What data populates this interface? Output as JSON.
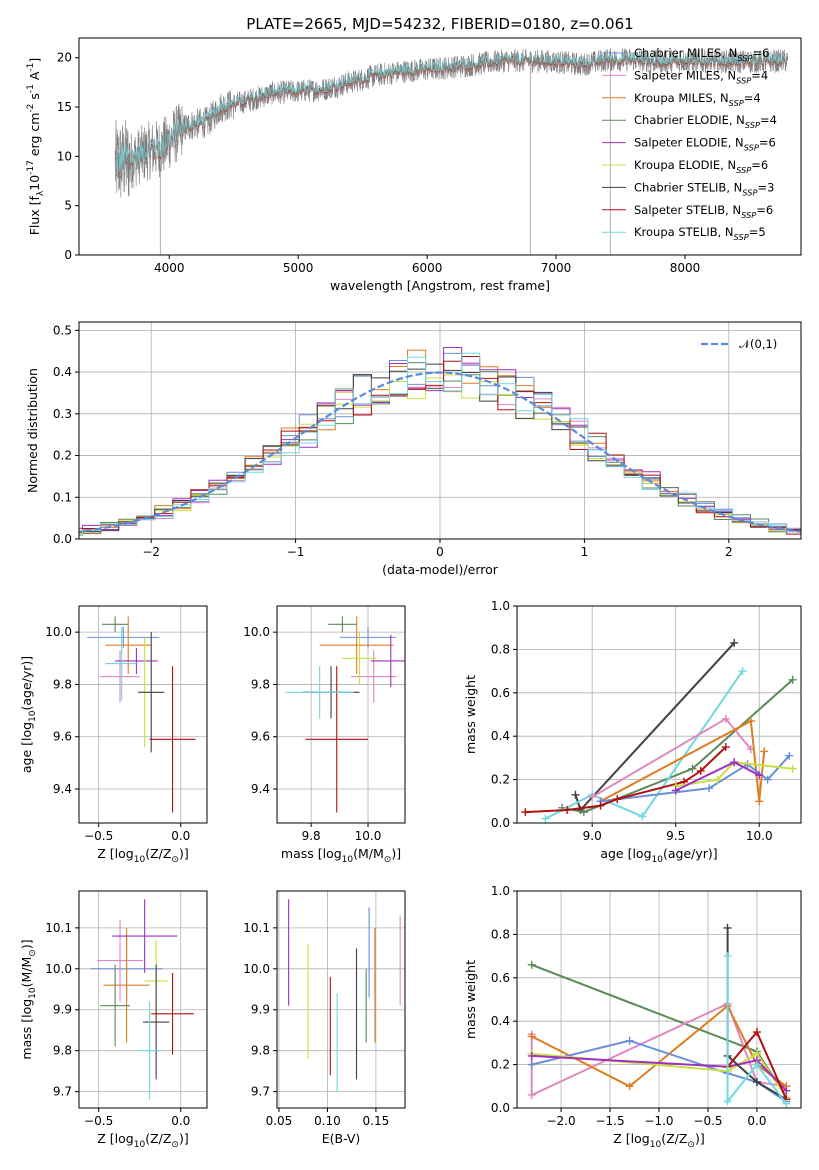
{
  "figure": {
    "title": "PLATE=2665, MJD=54232, FIBERID=0180, z=0.061"
  },
  "palette": {
    "Chabrier MILES": "#6a8ed8",
    "Salpeter MILES": "#e088c0",
    "Kroupa MILES": "#e07c20",
    "Chabrier ELODIE": "#5a8a5a",
    "Salpeter ELODIE": "#a030c0",
    "Kroupa ELODIE": "#c8e040",
    "Chabrier STELIB": "#404040",
    "Salpeter STELIB": "#b01010",
    "Kroupa STELIB": "#70d8e0",
    "Gauss": "#5a8ad8"
  },
  "chart_data": [
    {
      "id": "spectrum",
      "type": "line",
      "xlabel": "wavelength [Angstrom, rest frame]",
      "ylabel": "Flux [f$_\\lambda$10$^{-17}$ erg cm$^{-2}$ s$^{-1}$ A$^{-1}$]",
      "xlim": [
        3300,
        8900
      ],
      "ylim": [
        0,
        22
      ],
      "xticks": [
        4000,
        5000,
        6000,
        7000,
        8000
      ],
      "yticks": [
        0,
        5,
        10,
        15,
        20
      ],
      "grid": false,
      "legend_position": "upper right",
      "continuum": [
        [
          3580,
          9.2
        ],
        [
          3700,
          9.6
        ],
        [
          3850,
          10.6
        ],
        [
          3950,
          10.9
        ],
        [
          4050,
          12.2
        ],
        [
          4150,
          13.1
        ],
        [
          4300,
          13.5
        ],
        [
          4400,
          15.0
        ],
        [
          4600,
          15.6
        ],
        [
          4800,
          16.4
        ],
        [
          5000,
          16.6
        ],
        [
          5200,
          16.8
        ],
        [
          5400,
          17.5
        ],
        [
          5600,
          18.2
        ],
        [
          5800,
          18.6
        ],
        [
          6000,
          18.8
        ],
        [
          6300,
          19.2
        ],
        [
          6600,
          19.7
        ],
        [
          6800,
          19.7
        ],
        [
          7000,
          19.6
        ],
        [
          7200,
          19.3
        ],
        [
          7400,
          19.8
        ],
        [
          7600,
          19.8
        ],
        [
          7800,
          19.6
        ],
        [
          8000,
          19.7
        ],
        [
          8300,
          19.6
        ],
        [
          8600,
          19.6
        ],
        [
          8800,
          19.7
        ]
      ],
      "spikes": [
        [
          3930,
          0
        ],
        [
          6800,
          0
        ],
        [
          7420,
          0
        ]
      ],
      "legend_entries": [
        {
          "label": "Chabrier MILES, N$_{SSP}$=6",
          "series": "Chabrier MILES"
        },
        {
          "label": "Salpeter MILES, N$_{SSP}$=4",
          "series": "Salpeter MILES"
        },
        {
          "label": "Kroupa MILES, N$_{SSP}$=4",
          "series": "Kroupa MILES"
        },
        {
          "label": "Chabrier ELODIE, N$_{SSP}$=4",
          "series": "Chabrier ELODIE"
        },
        {
          "label": "Salpeter ELODIE, N$_{SSP}$=6",
          "series": "Salpeter ELODIE"
        },
        {
          "label": "Kroupa ELODIE, N$_{SSP}$=6",
          "series": "Kroupa ELODIE"
        },
        {
          "label": "Chabrier STELIB, N$_{SSP}$=3",
          "series": "Chabrier STELIB"
        },
        {
          "label": "Salpeter STELIB, N$_{SSP}$=6",
          "series": "Salpeter STELIB"
        },
        {
          "label": "Kroupa STELIB, N$_{SSP}$=5",
          "series": "Kroupa STELIB"
        }
      ]
    },
    {
      "id": "residuals",
      "type": "line",
      "xlabel": "(data-model)/error",
      "ylabel": "Normed distribution",
      "xlim": [
        -2.5,
        2.5
      ],
      "ylim": [
        0,
        0.52
      ],
      "xticks": [
        -2,
        -1,
        0,
        1,
        2
      ],
      "yticks": [
        0.0,
        0.1,
        0.2,
        0.3,
        0.4,
        0.5
      ],
      "grid": true,
      "legend_position": "upper right",
      "gauss_label": "$\\mathcal{N}(0,1)$"
    },
    {
      "id": "age-vs-Z",
      "type": "scatter",
      "xlabel": "Z [log$_{10}$(Z/Z$_\\odot$)]",
      "ylabel": "age  [log$_{10}$(age/yr)]",
      "xlim": [
        -0.62,
        0.16
      ],
      "ylim": [
        9.27,
        10.1
      ],
      "xticks": [
        -0.5,
        0.0
      ],
      "yticks": [
        9.4,
        9.6,
        9.8,
        10.0
      ],
      "grid": true,
      "points": [
        {
          "series": "Chabrier MILES",
          "x": -0.35,
          "xerr": 0.22,
          "y": 9.98,
          "yerr": 0.04
        },
        {
          "series": "Salpeter MILES",
          "x": -0.37,
          "xerr": 0.12,
          "y": 9.83,
          "yerr": 0.1
        },
        {
          "series": "Kroupa MILES",
          "x": -0.32,
          "xerr": 0.14,
          "y": 9.95,
          "yerr": 0.11
        },
        {
          "series": "Chabrier ELODIE",
          "x": -0.4,
          "xerr": 0.08,
          "y": 10.03,
          "yerr": 0.03
        },
        {
          "series": "Salpeter ELODIE",
          "x": -0.27,
          "xerr": 0.13,
          "y": 9.89,
          "yerr": 0.05
        },
        {
          "series": "Kroupa ELODIE",
          "x": -0.22,
          "xerr": 0.03,
          "y": 9.77,
          "yerr": 0.21
        },
        {
          "series": "Chabrier STELIB",
          "x": -0.18,
          "xerr": 0.08,
          "y": 9.77,
          "yerr": 0.23
        },
        {
          "series": "Salpeter STELIB",
          "x": -0.05,
          "xerr": 0.14,
          "y": 9.59,
          "yerr": 0.28
        },
        {
          "series": "Kroupa STELIB",
          "x": -0.36,
          "xerr": 0.1,
          "y": 9.88,
          "yerr": 0.14
        }
      ]
    },
    {
      "id": "age-vs-mass",
      "type": "scatter",
      "xlabel": "mass [log$_{10}$(M/M$_\\odot$)]",
      "ylabel": "",
      "xlim": [
        9.68,
        10.13
      ],
      "ylim": [
        9.27,
        10.1
      ],
      "xticks": [
        9.8,
        10.0
      ],
      "yticks": [
        9.4,
        9.6,
        9.8,
        10.0
      ],
      "grid": true,
      "points": [
        {
          "series": "Chabrier MILES",
          "x": 10.0,
          "xerr": 0.1,
          "y": 9.98,
          "yerr": 0.04
        },
        {
          "series": "Salpeter MILES",
          "x": 10.02,
          "xerr": 0.08,
          "y": 9.83,
          "yerr": 0.1
        },
        {
          "series": "Kroupa MILES",
          "x": 9.96,
          "xerr": 0.13,
          "y": 9.95,
          "yerr": 0.11
        },
        {
          "series": "Chabrier ELODIE",
          "x": 9.91,
          "xerr": 0.05,
          "y": 10.03,
          "yerr": 0.03
        },
        {
          "series": "Salpeter ELODIE",
          "x": 10.08,
          "xerr": 0.07,
          "y": 9.89,
          "yerr": 0.1
        },
        {
          "series": "Kroupa ELODIE",
          "x": 9.97,
          "xerr": 0.06,
          "y": 9.9,
          "yerr": 0.1
        },
        {
          "series": "Chabrier STELIB",
          "x": 9.87,
          "xerr": 0.1,
          "y": 9.77,
          "yerr": 0.1
        },
        {
          "series": "Salpeter STELIB",
          "x": 9.89,
          "xerr": 0.11,
          "y": 9.59,
          "yerr": 0.28
        },
        {
          "series": "Kroupa STELIB",
          "x": 9.83,
          "xerr": 0.12,
          "y": 9.77,
          "yerr": 0.1
        }
      ]
    },
    {
      "id": "weight-vs-age",
      "type": "line",
      "xlabel": "age  [log$_{10}$(age/yr)]",
      "ylabel": "mass weight",
      "xlim": [
        8.55,
        10.25
      ],
      "ylim": [
        0,
        1.0
      ],
      "xticks": [
        9.0,
        9.5,
        10.0
      ],
      "yticks": [
        0.0,
        0.2,
        0.4,
        0.6,
        0.8,
        1.0
      ],
      "grid": true,
      "series": [
        {
          "name": "Chabrier STELIB",
          "points": [
            [
              8.9,
              0.13
            ],
            [
              8.93,
              0.06
            ],
            [
              9.85,
              0.83
            ]
          ]
        },
        {
          "name": "Chabrier ELODIE",
          "points": [
            [
              8.82,
              0.07
            ],
            [
              8.95,
              0.05
            ],
            [
              9.6,
              0.25
            ],
            [
              10.2,
              0.66
            ]
          ]
        },
        {
          "name": "Kroupa STELIB",
          "points": [
            [
              8.72,
              0.02
            ],
            [
              9.0,
              0.13
            ],
            [
              9.3,
              0.03
            ],
            [
              9.9,
              0.7
            ]
          ]
        },
        {
          "name": "Salpeter MILES",
          "points": [
            [
              9.0,
              0.12
            ],
            [
              9.8,
              0.48
            ],
            [
              9.95,
              0.34
            ]
          ]
        },
        {
          "name": "Kroupa MILES",
          "points": [
            [
              9.05,
              0.1
            ],
            [
              9.95,
              0.47
            ],
            [
              10.0,
              0.1
            ],
            [
              10.03,
              0.33
            ]
          ]
        },
        {
          "name": "Chabrier MILES",
          "points": [
            [
              9.05,
              0.1
            ],
            [
              9.7,
              0.16
            ],
            [
              9.93,
              0.27
            ],
            [
              10.05,
              0.2
            ],
            [
              10.18,
              0.31
            ]
          ]
        },
        {
          "name": "Salpeter STELIB",
          "points": [
            [
              8.6,
              0.05
            ],
            [
              8.85,
              0.06
            ],
            [
              9.05,
              0.08
            ],
            [
              9.15,
              0.11
            ],
            [
              9.55,
              0.19
            ],
            [
              9.65,
              0.24
            ],
            [
              9.8,
              0.35
            ]
          ]
        },
        {
          "name": "Kroupa ELODIE",
          "points": [
            [
              9.5,
              0.17
            ],
            [
              9.75,
              0.2
            ],
            [
              9.85,
              0.28
            ],
            [
              10.2,
              0.25
            ]
          ]
        },
        {
          "name": "Salpeter ELODIE",
          "points": [
            [
              9.5,
              0.15
            ],
            [
              9.85,
              0.28
            ],
            [
              10.0,
              0.22
            ]
          ]
        }
      ]
    },
    {
      "id": "mass-vs-Z",
      "type": "scatter",
      "xlabel": "Z [log$_{10}$(Z/Z$_\\odot$)]",
      "ylabel": "mass [log$_{10}$(M/M$_\\odot$)]",
      "xlim": [
        -0.62,
        0.16
      ],
      "ylim": [
        9.66,
        10.19
      ],
      "xticks": [
        -0.5,
        0.0
      ],
      "yticks": [
        9.7,
        9.8,
        9.9,
        10.0,
        10.1
      ],
      "grid": true,
      "points": [
        {
          "series": "Chabrier MILES",
          "x": -0.33,
          "xerr": 0.22,
          "y": 10.0,
          "yerr": 0.08
        },
        {
          "series": "Salpeter MILES",
          "x": -0.37,
          "xerr": 0.14,
          "y": 10.02,
          "yerr": 0.1
        },
        {
          "series": "Kroupa MILES",
          "x": -0.33,
          "xerr": 0.14,
          "y": 9.96,
          "yerr": 0.14
        },
        {
          "series": "Chabrier ELODIE",
          "x": -0.4,
          "xerr": 0.09,
          "y": 9.91,
          "yerr": 0.1
        },
        {
          "series": "Salpeter ELODIE",
          "x": -0.22,
          "xerr": 0.2,
          "y": 10.08,
          "yerr": 0.09
        },
        {
          "series": "Kroupa ELODIE",
          "x": -0.15,
          "xerr": 0.07,
          "y": 9.97,
          "yerr": 0.1
        },
        {
          "series": "Chabrier STELIB",
          "x": -0.15,
          "xerr": 0.08,
          "y": 9.87,
          "yerr": 0.14
        },
        {
          "series": "Salpeter STELIB",
          "x": -0.05,
          "xerr": 0.13,
          "y": 9.89,
          "yerr": 0.1
        },
        {
          "series": "Kroupa STELIB",
          "x": -0.19,
          "xerr": 0.07,
          "y": 9.8,
          "yerr": 0.12
        }
      ]
    },
    {
      "id": "mass-vs-ebv",
      "type": "scatter",
      "xlabel": "E(B-V)",
      "ylabel": "",
      "xlim": [
        0.048,
        0.18
      ],
      "ylim": [
        9.66,
        10.19
      ],
      "xticks": [
        0.05,
        0.1,
        0.15
      ],
      "yticks": [
        9.7,
        9.8,
        9.9,
        10.0,
        10.1
      ],
      "grid": true,
      "points": [
        {
          "series": "Chabrier MILES",
          "x": 0.143,
          "y": 10.04,
          "yerr": 0.11
        },
        {
          "series": "Salpeter MILES",
          "x": 0.175,
          "y": 10.02,
          "yerr": 0.11
        },
        {
          "series": "Kroupa MILES",
          "x": 0.149,
          "y": 9.96,
          "yerr": 0.14
        },
        {
          "series": "Chabrier ELODIE",
          "x": 0.14,
          "y": 9.91,
          "yerr": 0.09
        },
        {
          "series": "Salpeter ELODIE",
          "x": 0.06,
          "y": 10.04,
          "yerr": 0.13
        },
        {
          "series": "Kroupa ELODIE",
          "x": 0.08,
          "y": 9.92,
          "yerr": 0.14
        },
        {
          "series": "Chabrier STELIB",
          "x": 0.13,
          "y": 9.89,
          "yerr": 0.16
        },
        {
          "series": "Salpeter STELIB",
          "x": 0.103,
          "y": 9.86,
          "yerr": 0.12
        },
        {
          "series": "Kroupa STELIB",
          "x": 0.11,
          "y": 9.82,
          "yerr": 0.12
        }
      ]
    },
    {
      "id": "weight-vs-Z",
      "type": "line",
      "xlabel": "Z [log$_{10}$(Z/Z$_\\odot$)]",
      "ylabel": "mass weight",
      "xlim": [
        -2.45,
        0.45
      ],
      "ylim": [
        0,
        1.0
      ],
      "xticks": [
        -2.0,
        -1.5,
        -1.0,
        -0.5,
        0.0
      ],
      "yticks": [
        0.0,
        0.2,
        0.4,
        0.6,
        0.8,
        1.0
      ],
      "grid": true,
      "series": [
        {
          "name": "Chabrier ELODIE",
          "points": [
            [
              -2.3,
              0.66
            ],
            [
              0.0,
              0.26
            ],
            [
              0.3,
              0.05
            ]
          ]
        },
        {
          "name": "Salpeter MILES",
          "points": [
            [
              -2.3,
              0.34
            ],
            [
              -2.3,
              0.06
            ],
            [
              -0.3,
              0.48
            ],
            [
              0.0,
              0.12
            ],
            [
              0.3,
              0.1
            ]
          ]
        },
        {
          "name": "Kroupa MILES",
          "points": [
            [
              -2.3,
              0.33
            ],
            [
              -1.3,
              0.1
            ],
            [
              -0.3,
              0.47
            ],
            [
              0.0,
              0.2
            ],
            [
              0.3,
              0.1
            ]
          ]
        },
        {
          "name": "Chabrier MILES",
          "points": [
            [
              -2.3,
              0.2
            ],
            [
              -1.3,
              0.31
            ],
            [
              -0.3,
              0.16
            ],
            [
              0.0,
              0.12
            ],
            [
              0.3,
              0.03
            ]
          ]
        },
        {
          "name": "Kroupa ELODIE",
          "points": [
            [
              -2.3,
              0.25
            ],
            [
              -0.3,
              0.17
            ],
            [
              0.0,
              0.25
            ],
            [
              0.3,
              0.05
            ]
          ]
        },
        {
          "name": "Salpeter ELODIE",
          "points": [
            [
              -2.3,
              0.24
            ],
            [
              -0.3,
              0.19
            ],
            [
              0.0,
              0.22
            ],
            [
              0.3,
              0.08
            ]
          ]
        },
        {
          "name": "Chabrier STELIB",
          "points": [
            [
              -0.3,
              0.83
            ],
            [
              -0.3,
              0.24
            ],
            [
              0.0,
              0.12
            ],
            [
              0.3,
              0.04
            ]
          ]
        },
        {
          "name": "Salpeter STELIB",
          "points": [
            [
              -0.3,
              0.19
            ],
            [
              0.0,
              0.35
            ],
            [
              0.3,
              0.04
            ]
          ]
        },
        {
          "name": "Kroupa STELIB",
          "points": [
            [
              -0.3,
              0.7
            ],
            [
              -0.3,
              0.03
            ],
            [
              0.0,
              0.2
            ],
            [
              0.3,
              0.02
            ]
          ]
        }
      ]
    }
  ]
}
